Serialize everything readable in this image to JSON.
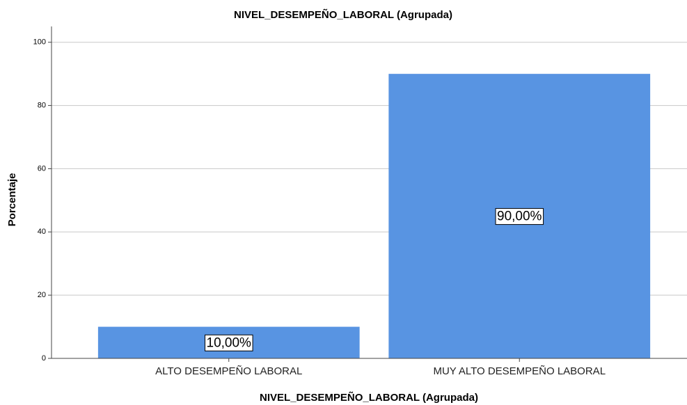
{
  "chart_data": {
    "type": "bar",
    "title": "NIVEL_DESEMPEÑO_LABORAL (Agrupada)",
    "x_label": "NIVEL_DESEMPEÑO_LABORAL (Agrupada)",
    "y_label": "Porcentaje",
    "categories": [
      "ALTO DESEMPEÑO LABORAL",
      "MUY ALTO DESEMPEÑO LABORAL"
    ],
    "values": [
      10,
      90
    ],
    "value_labels": [
      "10,00%",
      "90,00%"
    ],
    "color": "#5894e2",
    "ylim": [
      0,
      105
    ],
    "yticks": [
      0,
      20,
      40,
      60,
      80,
      100
    ],
    "grid": true
  }
}
